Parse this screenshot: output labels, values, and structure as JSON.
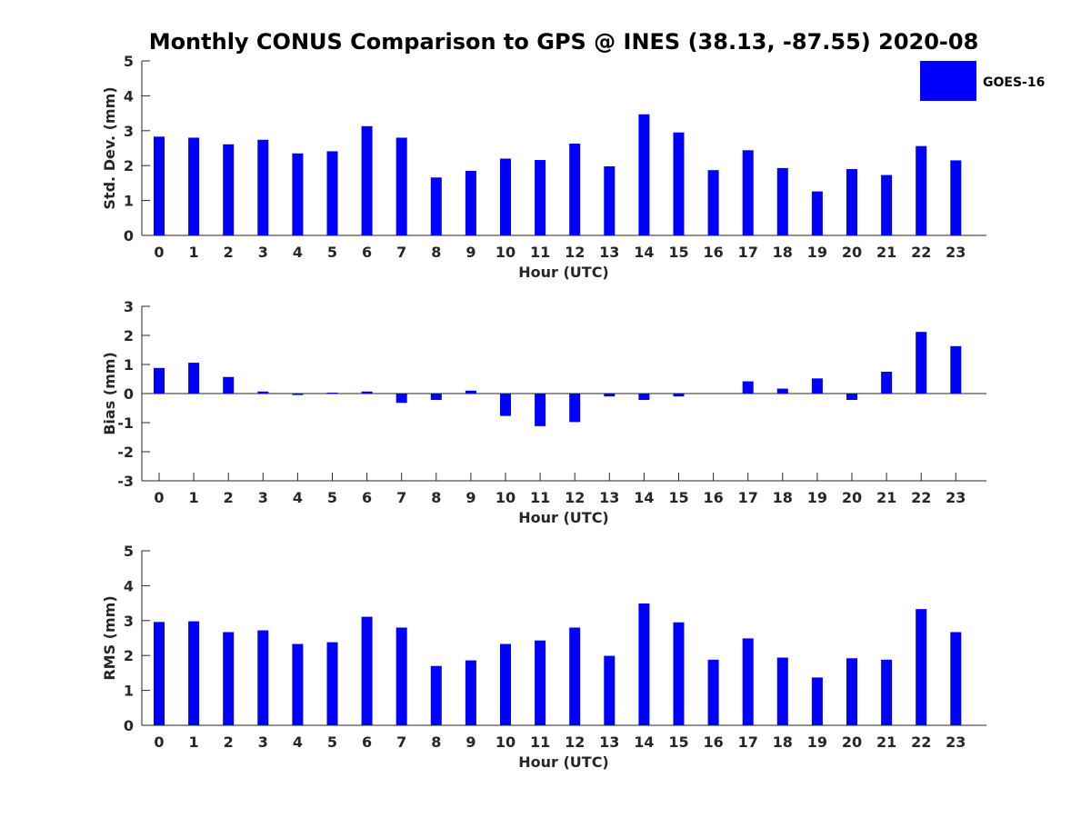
{
  "chart_data": [
    {
      "type": "bar",
      "title": "Monthly CONUS Comparison to GPS @ INES (38.13, -87.55) 2020-08",
      "xlabel": "Hour (UTC)",
      "ylabel": "Std. Dev. (mm)",
      "ylim": [
        0,
        5
      ],
      "yticks": [
        0,
        1,
        2,
        3,
        4,
        5
      ],
      "categories": [
        "0",
        "1",
        "2",
        "3",
        "4",
        "5",
        "6",
        "7",
        "8",
        "9",
        "10",
        "11",
        "12",
        "13",
        "14",
        "15",
        "16",
        "17",
        "18",
        "19",
        "20",
        "21",
        "22",
        "23"
      ],
      "series": [
        {
          "name": "GOES-16",
          "color": "#0000ff",
          "values": [
            2.83,
            2.8,
            2.61,
            2.74,
            2.35,
            2.41,
            3.13,
            2.8,
            1.66,
            1.85,
            2.2,
            2.16,
            2.63,
            1.98,
            3.47,
            2.95,
            1.87,
            2.44,
            1.93,
            1.26,
            1.9,
            1.73,
            2.56,
            2.15
          ]
        }
      ],
      "legend": {
        "entries": [
          "GOES-16"
        ],
        "placement": "top-right"
      }
    },
    {
      "type": "bar",
      "xlabel": "Hour (UTC)",
      "ylabel": "Bias (mm)",
      "ylim": [
        -3,
        3
      ],
      "yticks": [
        -3,
        -2,
        -1,
        0,
        1,
        2,
        3
      ],
      "categories": [
        "0",
        "1",
        "2",
        "3",
        "4",
        "5",
        "6",
        "7",
        "8",
        "9",
        "10",
        "11",
        "12",
        "13",
        "14",
        "15",
        "16",
        "17",
        "18",
        "19",
        "20",
        "21",
        "22",
        "23"
      ],
      "series": [
        {
          "name": "GOES-16",
          "color": "#0000ff",
          "values": [
            0.88,
            1.06,
            0.57,
            0.07,
            -0.05,
            0.03,
            0.07,
            -0.32,
            -0.22,
            0.1,
            -0.77,
            -1.12,
            -0.98,
            -0.1,
            -0.22,
            -0.1,
            0.0,
            0.42,
            0.17,
            0.52,
            -0.22,
            0.75,
            2.12,
            1.63
          ]
        }
      ],
      "zero_line": true
    },
    {
      "type": "bar",
      "xlabel": "Hour (UTC)",
      "ylabel": "RMS (mm)",
      "ylim": [
        0,
        5
      ],
      "yticks": [
        0,
        1,
        2,
        3,
        4,
        5
      ],
      "categories": [
        "0",
        "1",
        "2",
        "3",
        "4",
        "5",
        "6",
        "7",
        "8",
        "9",
        "10",
        "11",
        "12",
        "13",
        "14",
        "15",
        "16",
        "17",
        "18",
        "19",
        "20",
        "21",
        "22",
        "23"
      ],
      "series": [
        {
          "name": "GOES-16",
          "color": "#0000ff",
          "values": [
            2.96,
            2.98,
            2.67,
            2.72,
            2.33,
            2.38,
            3.11,
            2.8,
            1.7,
            1.86,
            2.33,
            2.43,
            2.8,
            1.99,
            3.49,
            2.95,
            1.88,
            2.49,
            1.94,
            1.37,
            1.92,
            1.88,
            3.33,
            2.67
          ]
        }
      ]
    }
  ]
}
